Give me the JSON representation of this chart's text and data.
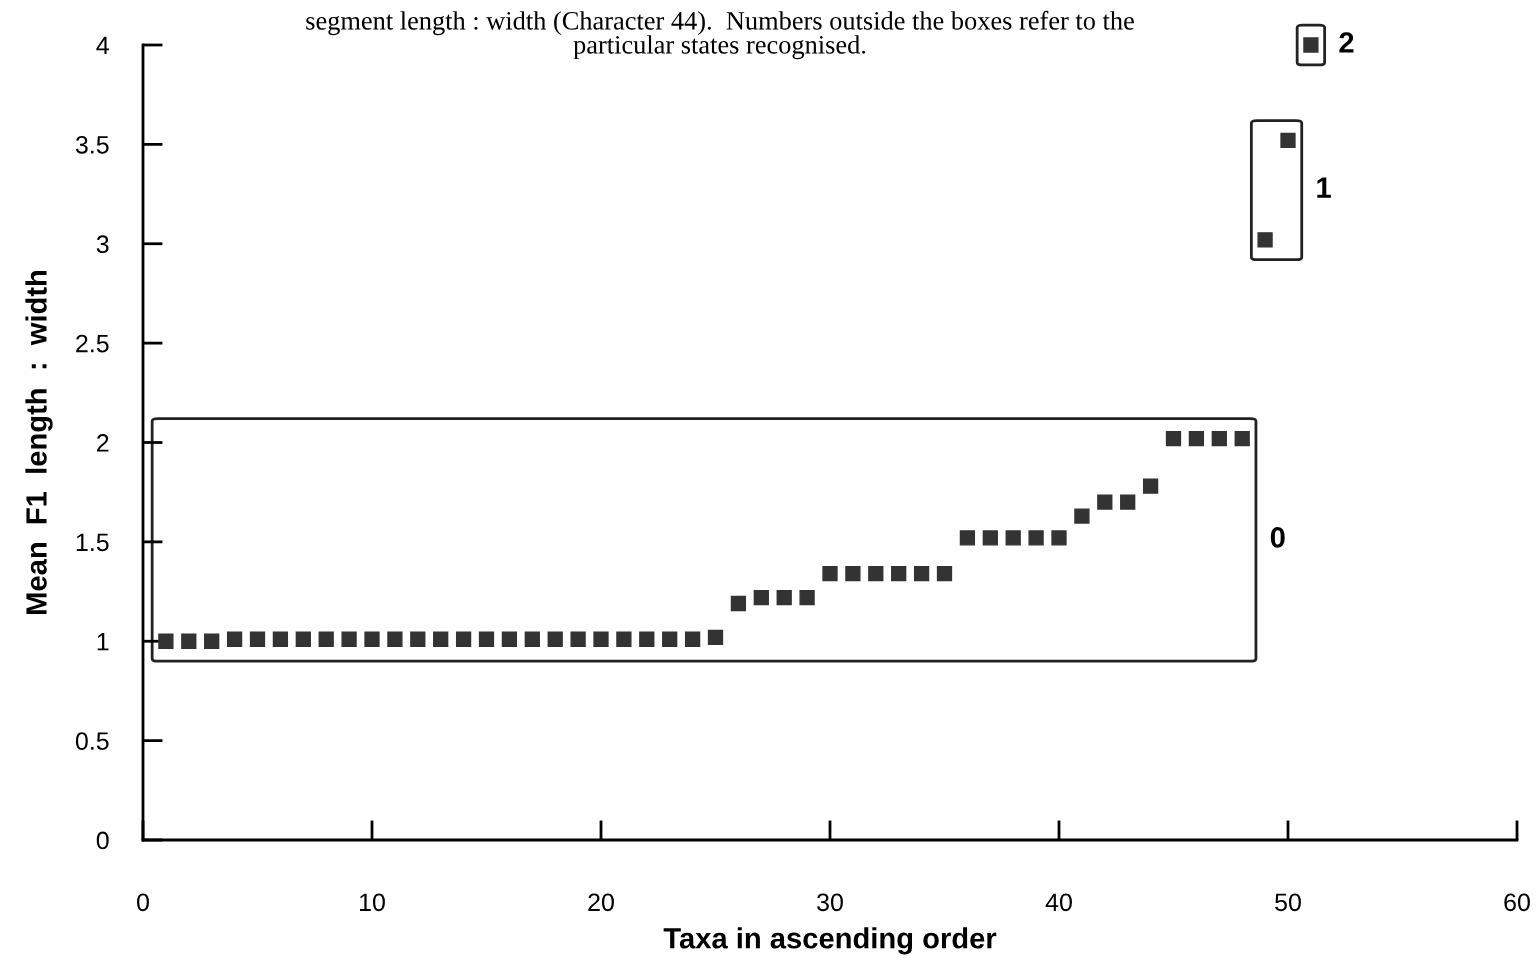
{
  "chart_data": {
    "type": "scatter",
    "title": "segment length : width (Character 44).  Numbers outside the boxes refer to the\nparticular states recognised.",
    "xlabel": "Taxa in ascending order",
    "ylabel": "Mean  F1  length  :  width",
    "series": [
      {
        "color": "#333333",
        "x": [
          1,
          2,
          3,
          4,
          5,
          6,
          7,
          8,
          9,
          10,
          11,
          12,
          13,
          14,
          15,
          16,
          17,
          18,
          19,
          20,
          21,
          22,
          23,
          24,
          25,
          26,
          27,
          28,
          29,
          30,
          31,
          32,
          33,
          34,
          35,
          36,
          37,
          38,
          39,
          40,
          41,
          42,
          43,
          44,
          45,
          46,
          47,
          48
        ],
        "values": [
          1.0,
          1.0,
          1.0,
          1.01,
          1.01,
          1.01,
          1.01,
          1.01,
          1.01,
          1.01,
          1.01,
          1.01,
          1.01,
          1.01,
          1.01,
          1.01,
          1.01,
          1.01,
          1.01,
          1.01,
          1.01,
          1.01,
          1.01,
          1.01,
          1.02,
          1.19,
          1.22,
          1.22,
          1.22,
          1.34,
          1.34,
          1.34,
          1.34,
          1.34,
          1.34,
          1.52,
          1.52,
          1.52,
          1.52,
          1.52,
          1.63,
          1.7,
          1.7,
          1.78,
          2.02,
          2.02,
          2.02,
          2.02
        ]
      },
      {
        "color": "#333333",
        "x": [
          49,
          50
        ],
        "values": [
          3.02,
          3.52
        ]
      },
      {
        "color": "#333333",
        "x": [
          51
        ],
        "values": [
          4.0
        ]
      }
    ],
    "annotations": [
      "0",
      "1",
      "2"
    ],
    "xlim": [
      0,
      60
    ],
    "xticks": [
      0,
      10,
      20,
      30,
      40,
      50,
      60
    ],
    "ylim": [
      0,
      4
    ],
    "yticks": [
      0,
      0.5,
      1,
      1.5,
      2,
      2.5,
      3,
      3.5,
      4
    ],
    "marker": "square",
    "grid": false
  }
}
